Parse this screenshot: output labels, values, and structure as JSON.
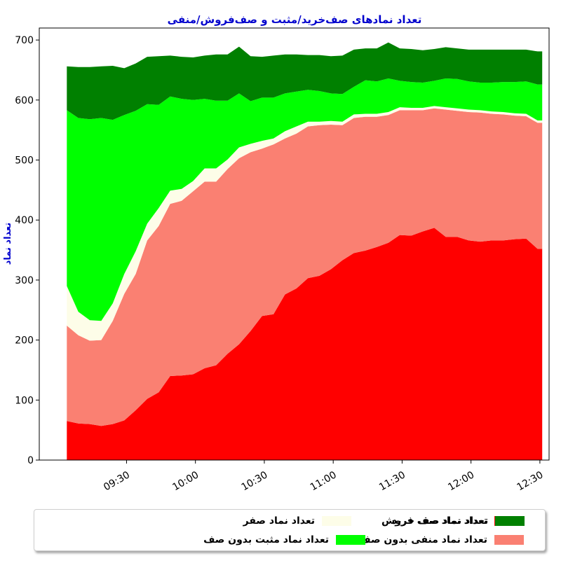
{
  "chart_data": {
    "type": "area",
    "stacked": true,
    "title": "تعداد نمادهای صف‌خرید/مثبت و صف‌فروش/منفی",
    "xlabel": "",
    "ylabel": "تعداد نماد",
    "ylim": [
      0,
      720
    ],
    "yticks": [
      0,
      100,
      200,
      300,
      400,
      500,
      600,
      700
    ],
    "xticks": [
      {
        "t": 30,
        "label": "09:30"
      },
      {
        "t": 60,
        "label": "10:00"
      },
      {
        "t": 90,
        "label": "10:30"
      },
      {
        "t": 120,
        "label": "11:00"
      },
      {
        "t": 150,
        "label": "11:30"
      },
      {
        "t": 180,
        "label": "12:00"
      },
      {
        "t": 210,
        "label": "12:30"
      }
    ],
    "x_minutes_from_0900": [
      4,
      9,
      14,
      19,
      24,
      29,
      34,
      39,
      44,
      49,
      54,
      59,
      64,
      69,
      74,
      79,
      84,
      89,
      94,
      99,
      104,
      109,
      114,
      119,
      124,
      129,
      134,
      139,
      144,
      149,
      154,
      159,
      164,
      169,
      174,
      179,
      184,
      189,
      194,
      199,
      204,
      209,
      211
    ],
    "series": [
      {
        "name": "تعداد نماد صف فروش",
        "color": "#ff0000",
        "values": [
          65,
          61,
          60,
          57,
          60,
          66,
          83,
          102,
          113,
          140,
          141,
          143,
          153,
          158,
          177,
          193,
          215,
          240,
          243,
          276,
          286,
          303,
          307,
          318,
          333,
          345,
          349,
          355,
          362,
          375,
          374,
          381,
          387,
          372,
          372,
          366,
          364,
          366,
          366,
          368,
          369,
          352,
          352
        ]
      },
      {
        "name": "تعداد نماد منفی بدون صف",
        "color": "#fa8072",
        "values": [
          159,
          147,
          139,
          143,
          172,
          211,
          227,
          264,
          277,
          287,
          291,
          305,
          311,
          306,
          308,
          310,
          298,
          279,
          283,
          260,
          258,
          253,
          251,
          241,
          225,
          225,
          223,
          217,
          213,
          208,
          209,
          202,
          199,
          212,
          210,
          214,
          215,
          211,
          210,
          206,
          204,
          210,
          210
        ]
      },
      {
        "name": "تعداد نماد صفر",
        "color": "#fdfde8",
        "values": [
          66,
          39,
          34,
          32,
          29,
          33,
          38,
          28,
          30,
          22,
          20,
          17,
          22,
          22,
          16,
          18,
          14,
          13,
          10,
          12,
          12,
          8,
          6,
          6,
          6,
          6,
          5,
          5,
          5,
          5,
          4,
          4,
          4,
          4,
          4,
          4,
          4,
          4,
          4,
          4,
          4,
          4,
          4
        ]
      },
      {
        "name": "تعداد نماد مثبت بدون صف",
        "color": "#00ff00",
        "values": [
          293,
          323,
          335,
          338,
          306,
          265,
          234,
          199,
          172,
          157,
          150,
          135,
          116,
          113,
          98,
          90,
          71,
          72,
          68,
          63,
          58,
          53,
          51,
          46,
          46,
          46,
          56,
          54,
          56,
          44,
          43,
          42,
          42,
          48,
          49,
          47,
          46,
          48,
          50,
          52,
          54,
          60,
          60
        ]
      },
      {
        "name": "تعداد نماد صف خرید",
        "color": "#008000",
        "values": [
          73,
          85,
          87,
          86,
          90,
          78,
          79,
          79,
          81,
          68,
          70,
          71,
          72,
          77,
          77,
          78,
          75,
          68,
          70,
          65,
          62,
          58,
          60,
          62,
          64,
          62,
          53,
          55,
          60,
          54,
          55,
          54,
          53,
          52,
          51,
          53,
          55,
          55,
          54,
          54,
          53,
          55,
          55
        ]
      }
    ]
  },
  "legend": {
    "items": [
      {
        "label": "تعداد نماد صف فروش",
        "color": "#ff0000"
      },
      {
        "label": "تعداد نماد منفی بدون صف",
        "color": "#fa8072"
      },
      {
        "label": "تعداد نماد صفر",
        "color": "#fdfde8"
      },
      {
        "label": "تعداد نماد مثبت بدون صف",
        "color": "#00ff00"
      },
      {
        "label": "تعداد نماد صف خرید",
        "color": "#008000"
      }
    ]
  }
}
